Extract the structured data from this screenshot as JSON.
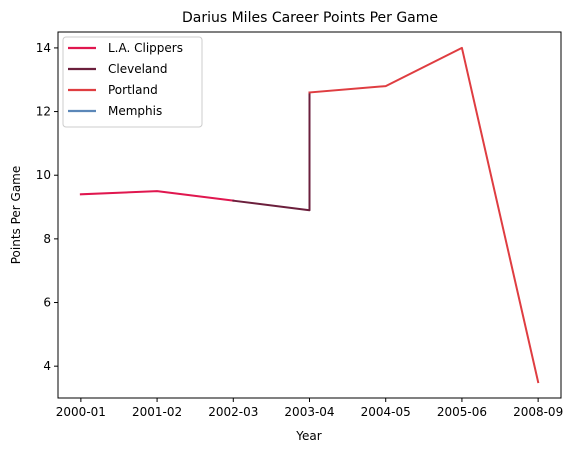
{
  "chart_data": {
    "type": "line",
    "title": "Darius Miles Career Points Per Game",
    "xlabel": "Year",
    "ylabel": "Points Per Game",
    "categories": [
      "2000-01",
      "2001-02",
      "2002-03",
      "2003-04",
      "2004-05",
      "2005-06",
      "2008-09"
    ],
    "xlim": [
      -0.3,
      6.3
    ],
    "ylim": [
      3.0,
      14.5
    ],
    "yticks": [
      4,
      6,
      8,
      10,
      12,
      14
    ],
    "grid": false,
    "legend_placement": "top-left",
    "series": [
      {
        "name": "L.A. Clippers",
        "color": "#e0174f",
        "points": [
          [
            0,
            9.4
          ],
          [
            1,
            9.5
          ],
          [
            2,
            9.2
          ]
        ]
      },
      {
        "name": "Cleveland",
        "color": "#6b1f3c",
        "points": [
          [
            2,
            9.2
          ],
          [
            3,
            8.9
          ],
          [
            3,
            12.6
          ]
        ]
      },
      {
        "name": "Portland",
        "color": "#df3d41",
        "points": [
          [
            3,
            12.6
          ],
          [
            4,
            12.8
          ],
          [
            5,
            14.0
          ],
          [
            6,
            3.5
          ]
        ]
      },
      {
        "name": "Memphis",
        "color": "#5b87b8",
        "points": []
      }
    ]
  }
}
